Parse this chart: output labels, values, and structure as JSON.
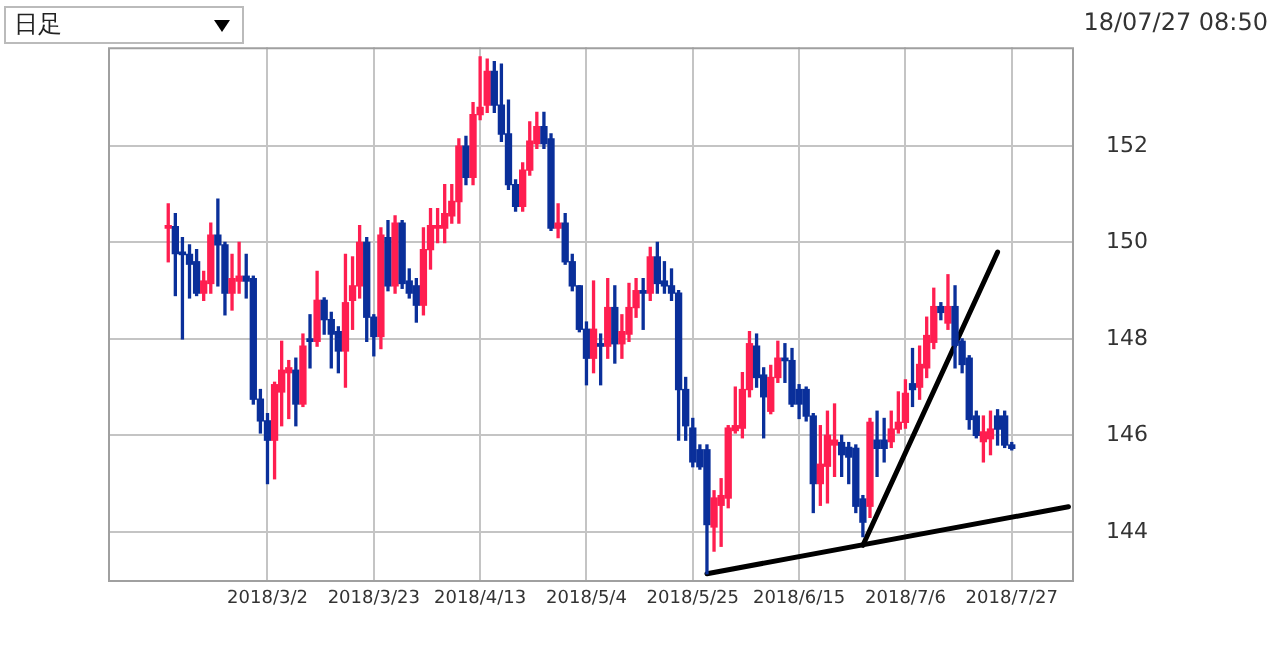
{
  "chart_data": {
    "type": "candlestick",
    "categories": [
      null,
      null,
      null,
      null,
      null,
      null,
      null,
      null,
      null,
      null,
      null,
      null,
      null,
      null,
      null,
      null,
      null,
      null,
      null,
      null,
      null,
      null,
      "2018/3/2",
      null,
      null,
      null,
      null,
      null,
      null,
      null,
      null,
      null,
      null,
      null,
      null,
      null,
      null,
      "2018/3/23",
      null,
      null,
      null,
      null,
      null,
      null,
      null,
      null,
      null,
      null,
      null,
      null,
      null,
      null,
      "2018/4/13",
      null,
      null,
      null,
      null,
      null,
      null,
      null,
      null,
      null,
      null,
      null,
      null,
      null,
      null,
      "2018/5/4",
      null,
      null,
      null,
      null,
      null,
      null,
      null,
      null,
      null,
      null,
      null,
      null,
      null,
      null,
      "2018/5/25",
      null,
      null,
      null,
      null,
      null,
      null,
      null,
      null,
      null,
      null,
      null,
      null,
      null,
      null,
      "2018/6/15",
      null,
      null,
      null,
      null,
      null,
      null,
      null,
      null,
      null,
      null,
      null,
      null,
      null,
      null,
      "2018/7/6",
      null,
      null,
      null,
      null,
      null,
      null,
      null,
      null,
      null,
      null,
      null,
      null,
      null,
      null,
      "2018/7/27",
      null,
      null,
      null,
      null,
      null,
      null,
      null,
      null
    ],
    "ohlc": [
      null,
      null,
      null,
      null,
      null,
      null,
      null,
      null,
      [
        150.3,
        150.8,
        149.6,
        150.35
      ],
      [
        150.33,
        150.6,
        148.9,
        149.77
      ],
      [
        149.8,
        150.1,
        148.0,
        149.75
      ],
      [
        149.75,
        149.95,
        148.85,
        149.55
      ],
      [
        149.6,
        149.85,
        148.9,
        148.95
      ],
      [
        148.95,
        149.4,
        148.8,
        149.2
      ],
      [
        149.15,
        150.4,
        148.95,
        150.15
      ],
      [
        150.15,
        150.9,
        149.1,
        149.95
      ],
      [
        149.95,
        150.0,
        148.5,
        148.95
      ],
      [
        148.95,
        149.75,
        148.6,
        149.25
      ],
      [
        149.2,
        150.0,
        148.95,
        149.3
      ],
      [
        149.3,
        149.75,
        148.85,
        149.2
      ],
      [
        149.25,
        149.3,
        146.65,
        146.75
      ],
      [
        146.75,
        146.95,
        146.05,
        146.3
      ],
      [
        146.3,
        146.45,
        145.0,
        145.9
      ],
      [
        145.9,
        147.1,
        145.1,
        147.05
      ],
      [
        146.9,
        147.95,
        146.2,
        147.35
      ],
      [
        147.3,
        147.55,
        146.35,
        147.4
      ],
      [
        147.35,
        147.6,
        146.2,
        146.65
      ],
      [
        146.65,
        148.1,
        146.6,
        147.85
      ],
      [
        148.0,
        148.5,
        147.4,
        147.95
      ],
      [
        147.95,
        149.4,
        147.85,
        148.8
      ],
      [
        148.8,
        148.85,
        148.1,
        148.4
      ],
      [
        148.4,
        148.55,
        147.4,
        148.1
      ],
      [
        148.15,
        148.25,
        147.3,
        147.75
      ],
      [
        147.75,
        149.75,
        147.0,
        148.75
      ],
      [
        148.8,
        149.7,
        148.2,
        149.1
      ],
      [
        149.1,
        150.35,
        148.85,
        150.0
      ],
      [
        150.0,
        150.1,
        147.95,
        148.45
      ],
      [
        148.45,
        148.5,
        147.65,
        148.05
      ],
      [
        148.05,
        150.3,
        147.8,
        150.15
      ],
      [
        150.1,
        150.45,
        149.0,
        149.1
      ],
      [
        149.1,
        150.55,
        148.95,
        150.4
      ],
      [
        150.4,
        150.45,
        149.05,
        149.15
      ],
      [
        149.2,
        149.45,
        148.85,
        148.95
      ],
      [
        149.1,
        149.25,
        148.35,
        148.7
      ],
      [
        148.7,
        150.3,
        148.5,
        149.85
      ],
      [
        149.85,
        150.7,
        149.45,
        150.35
      ],
      [
        150.3,
        150.7,
        150.0,
        150.35
      ],
      [
        150.3,
        151.2,
        150.0,
        150.6
      ],
      [
        150.55,
        151.2,
        150.4,
        150.85
      ],
      [
        150.85,
        152.15,
        150.4,
        152.0
      ],
      [
        152.0,
        152.2,
        151.2,
        151.35
      ],
      [
        151.35,
        152.9,
        151.2,
        152.65
      ],
      [
        152.65,
        153.85,
        152.55,
        152.8
      ],
      [
        152.85,
        153.8,
        152.7,
        153.55
      ],
      [
        153.55,
        153.75,
        152.7,
        152.85
      ],
      [
        152.85,
        153.7,
        152.1,
        152.25
      ],
      [
        152.25,
        152.95,
        151.1,
        151.2
      ],
      [
        151.2,
        151.3,
        150.65,
        150.75
      ],
      [
        150.75,
        151.65,
        150.65,
        151.5
      ],
      [
        151.5,
        152.5,
        151.4,
        152.1
      ],
      [
        152.05,
        152.7,
        151.95,
        152.4
      ],
      [
        152.4,
        152.7,
        151.95,
        152.05
      ],
      [
        152.15,
        152.25,
        150.25,
        150.3
      ],
      [
        150.3,
        150.8,
        150.1,
        150.4
      ],
      [
        150.4,
        150.6,
        149.55,
        149.6
      ],
      [
        149.6,
        149.75,
        149.0,
        149.1
      ],
      [
        149.1,
        149.1,
        148.15,
        148.2
      ],
      [
        148.2,
        148.35,
        147.05,
        147.6
      ],
      [
        147.6,
        149.2,
        147.3,
        148.2
      ],
      [
        147.9,
        148.1,
        147.05,
        147.85
      ],
      [
        147.85,
        149.25,
        147.6,
        148.65
      ],
      [
        148.65,
        149.1,
        147.5,
        147.9
      ],
      [
        147.9,
        148.5,
        147.6,
        148.15
      ],
      [
        148.1,
        149.15,
        147.95,
        148.65
      ],
      [
        148.65,
        149.25,
        148.45,
        149.0
      ],
      [
        149.0,
        149.25,
        148.2,
        148.95
      ],
      [
        148.95,
        149.9,
        148.8,
        149.7
      ],
      [
        149.7,
        150.0,
        148.95,
        149.15
      ],
      [
        149.2,
        149.6,
        148.95,
        149.1
      ],
      [
        149.1,
        149.45,
        148.8,
        148.95
      ],
      [
        148.95,
        149.0,
        145.9,
        146.95
      ],
      [
        146.95,
        147.2,
        145.9,
        146.2
      ],
      [
        146.15,
        146.35,
        145.35,
        145.45
      ],
      [
        145.7,
        145.8,
        145.3,
        145.35
      ],
      [
        145.7,
        145.8,
        143.13,
        144.15
      ],
      [
        144.1,
        144.85,
        143.6,
        144.7
      ],
      [
        144.55,
        145.1,
        143.7,
        144.75
      ],
      [
        144.7,
        146.2,
        144.5,
        146.15
      ],
      [
        146.1,
        147.0,
        146.05,
        146.2
      ],
      [
        146.15,
        147.3,
        145.95,
        146.95
      ],
      [
        146.95,
        148.15,
        146.8,
        147.9
      ],
      [
        147.85,
        148.1,
        147.0,
        147.2
      ],
      [
        147.25,
        147.4,
        145.95,
        146.8
      ],
      [
        146.5,
        147.45,
        146.45,
        147.2
      ],
      [
        147.2,
        147.95,
        147.1,
        147.6
      ],
      [
        147.6,
        147.9,
        147.1,
        147.55
      ],
      [
        147.55,
        147.8,
        146.6,
        146.65
      ],
      [
        146.95,
        147.05,
        146.35,
        146.65
      ],
      [
        146.95,
        147.0,
        146.3,
        146.4
      ],
      [
        146.4,
        146.45,
        144.4,
        145.0
      ],
      [
        145.0,
        146.2,
        144.55,
        145.4
      ],
      [
        145.36,
        146.5,
        144.6,
        146.0
      ],
      [
        145.8,
        146.65,
        145.15,
        145.9
      ],
      [
        145.85,
        146.0,
        145.15,
        145.6
      ],
      [
        145.75,
        145.85,
        145.0,
        145.55
      ],
      [
        145.73,
        145.8,
        144.4,
        144.53
      ],
      [
        144.68,
        144.75,
        143.9,
        144.2
      ],
      [
        144.53,
        146.35,
        144.3,
        146.27
      ],
      [
        145.9,
        146.5,
        145.15,
        145.73
      ],
      [
        145.9,
        146.35,
        145.45,
        145.73
      ],
      [
        145.87,
        146.5,
        145.75,
        146.13
      ],
      [
        146.13,
        146.9,
        146.05,
        146.27
      ],
      [
        146.27,
        147.15,
        146.15,
        146.87
      ],
      [
        147.07,
        147.8,
        146.6,
        146.95
      ],
      [
        147.0,
        147.85,
        146.75,
        147.47
      ],
      [
        147.4,
        148.45,
        147.2,
        148.07
      ],
      [
        147.93,
        149.05,
        147.8,
        148.67
      ],
      [
        148.67,
        148.75,
        148.4,
        148.55
      ],
      [
        148.33,
        149.33,
        148.2,
        148.67
      ],
      [
        148.67,
        149.1,
        147.4,
        147.87
      ],
      [
        147.95,
        148.0,
        147.3,
        147.47
      ],
      [
        147.6,
        147.65,
        146.13,
        146.33
      ],
      [
        146.4,
        146.5,
        145.95,
        146.0
      ],
      [
        145.87,
        146.4,
        145.45,
        146.07
      ],
      [
        145.93,
        146.5,
        145.6,
        146.13
      ],
      [
        146.4,
        146.53,
        145.8,
        146.13
      ],
      [
        146.4,
        146.5,
        145.75,
        145.8
      ],
      [
        145.8,
        145.85,
        145.7,
        145.73
      ],
      null,
      null,
      null,
      null,
      null,
      null,
      null,
      null
    ],
    "colors": [
      null,
      null,
      null,
      null,
      null,
      null,
      null,
      null,
      "#ff1e50",
      "#0a2f9a",
      "#0a2f9a",
      "#0a2f9a",
      "#0a2f9a",
      "#ff1e50",
      "#ff1e50",
      "#0a2f9a",
      "#0a2f9a",
      "#ff1e50",
      "#ff1e50",
      "#0a2f9a",
      "#0a2f9a",
      "#0a2f9a",
      "#0a2f9a",
      "#ff1e50",
      "#ff1e50",
      "#ff1e50",
      "#0a2f9a",
      "#ff1e50",
      "#0a2f9a",
      "#ff1e50",
      "#0a2f9a",
      "#0a2f9a",
      "#0a2f9a",
      "#ff1e50",
      "#ff1e50",
      "#ff1e50",
      "#0a2f9a",
      "#0a2f9a",
      "#ff1e50",
      "#0a2f9a",
      "#ff1e50",
      "#0a2f9a",
      "#0a2f9a",
      "#0a2f9a",
      "#ff1e50",
      "#ff1e50",
      "#ff1e50",
      "#ff1e50",
      "#ff1e50",
      "#ff1e50",
      "#0a2f9a",
      "#ff1e50",
      "#ff1e50",
      "#ff1e50",
      "#0a2f9a",
      "#0a2f9a",
      "#0a2f9a",
      "#0a2f9a",
      "#ff1e50",
      "#ff1e50",
      "#ff1e50",
      "#0a2f9a",
      "#0a2f9a",
      "#ff1e50",
      "#0a2f9a",
      "#0a2f9a",
      "#0a2f9a",
      "#0a2f9a",
      "#ff1e50",
      "#0a2f9a",
      "#ff1e50",
      "#0a2f9a",
      "#ff1e50",
      "#ff1e50",
      "#ff1e50",
      "#0a2f9a",
      "#ff1e50",
      "#0a2f9a",
      "#0a2f9a",
      "#0a2f9a",
      "#0a2f9a",
      "#0a2f9a",
      "#0a2f9a",
      "#0a2f9a",
      "#0a2f9a",
      "#ff1e50",
      "#ff1e50",
      "#ff1e50",
      "#ff1e50",
      "#ff1e50",
      "#ff1e50",
      "#0a2f9a",
      "#0a2f9a",
      "#ff1e50",
      "#ff1e50",
      "#0a2f9a",
      "#0a2f9a",
      "#0a2f9a",
      "#0a2f9a",
      "#0a2f9a",
      "#ff1e50",
      "#ff1e50",
      "#ff1e50",
      "#0a2f9a",
      "#0a2f9a",
      "#0a2f9a",
      "#0a2f9a",
      "#ff1e50",
      "#0a2f9a",
      "#0a2f9a",
      "#ff1e50",
      "#ff1e50",
      "#ff1e50",
      "#0a2f9a",
      "#ff1e50",
      "#ff1e50",
      "#ff1e50",
      "#0a2f9a",
      "#ff1e50",
      "#0a2f9a",
      "#0a2f9a",
      "#0a2f9a",
      "#0a2f9a",
      "#ff1e50",
      "#ff1e50",
      "#0a2f9a",
      "#0a2f9a",
      "#0a2f9a",
      null,
      null,
      null,
      null,
      null,
      null,
      null,
      null
    ],
    "series": [
      {
        "type": "line",
        "color": "#000000",
        "values": [
          null,
          null,
          null,
          null,
          null,
          null,
          null,
          null,
          null,
          null,
          null,
          null,
          null,
          null,
          null,
          null,
          null,
          null,
          null,
          null,
          null,
          null,
          null,
          null,
          null,
          null,
          null,
          null,
          null,
          null,
          null,
          null,
          null,
          null,
          null,
          null,
          null,
          null,
          null,
          null,
          null,
          null,
          null,
          null,
          null,
          null,
          null,
          null,
          null,
          null,
          null,
          null,
          null,
          null,
          null,
          null,
          null,
          null,
          null,
          null,
          null,
          null,
          null,
          null,
          null,
          null,
          null,
          null,
          null,
          null,
          null,
          null,
          null,
          null,
          null,
          null,
          null,
          null,
          null,
          null,
          null,
          null,
          null,
          null,
          143.13,
          null,
          null,
          null,
          null,
          null,
          null,
          null,
          null,
          null,
          null,
          null,
          null,
          null,
          null,
          null,
          null,
          null,
          null,
          null,
          null,
          null,
          null,
          null,
          null,
          null,
          null,
          null,
          null,
          null,
          null,
          null,
          null,
          null,
          null,
          null,
          null,
          null,
          null,
          null,
          null,
          null,
          null,
          null,
          null,
          null,
          null,
          null,
          null,
          null,
          null,
          144.52
        ]
      },
      {
        "type": "line",
        "color": "#000000",
        "values": [
          null,
          null,
          null,
          null,
          null,
          null,
          null,
          null,
          null,
          null,
          null,
          null,
          null,
          null,
          null,
          null,
          null,
          null,
          null,
          null,
          null,
          null,
          null,
          null,
          null,
          null,
          null,
          null,
          null,
          null,
          null,
          null,
          null,
          null,
          null,
          null,
          null,
          null,
          null,
          null,
          null,
          null,
          null,
          null,
          null,
          null,
          null,
          null,
          null,
          null,
          null,
          null,
          null,
          null,
          null,
          null,
          null,
          null,
          null,
          null,
          null,
          null,
          null,
          null,
          null,
          null,
          null,
          null,
          null,
          null,
          null,
          null,
          null,
          null,
          null,
          null,
          null,
          null,
          null,
          null,
          null,
          null,
          null,
          null,
          null,
          null,
          null,
          null,
          null,
          null,
          null,
          null,
          null,
          null,
          null,
          null,
          null,
          null,
          null,
          null,
          null,
          null,
          null,
          null,
          null,
          null,
          143.72,
          null,
          null,
          null,
          null,
          null,
          null,
          null,
          null,
          null,
          null,
          null,
          null,
          null,
          null,
          null,
          null,
          null,
          null,
          149.8,
          null,
          null,
          null,
          null,
          null,
          null,
          null,
          null,
          null,
          null
        ]
      }
    ],
    "ylim": [
      143,
      154.05
    ],
    "yticks": [
      144,
      146,
      148,
      150,
      152
    ],
    "grid": true,
    "annotations": [
      "日足",
      "18/07/27 08:50"
    ]
  }
}
